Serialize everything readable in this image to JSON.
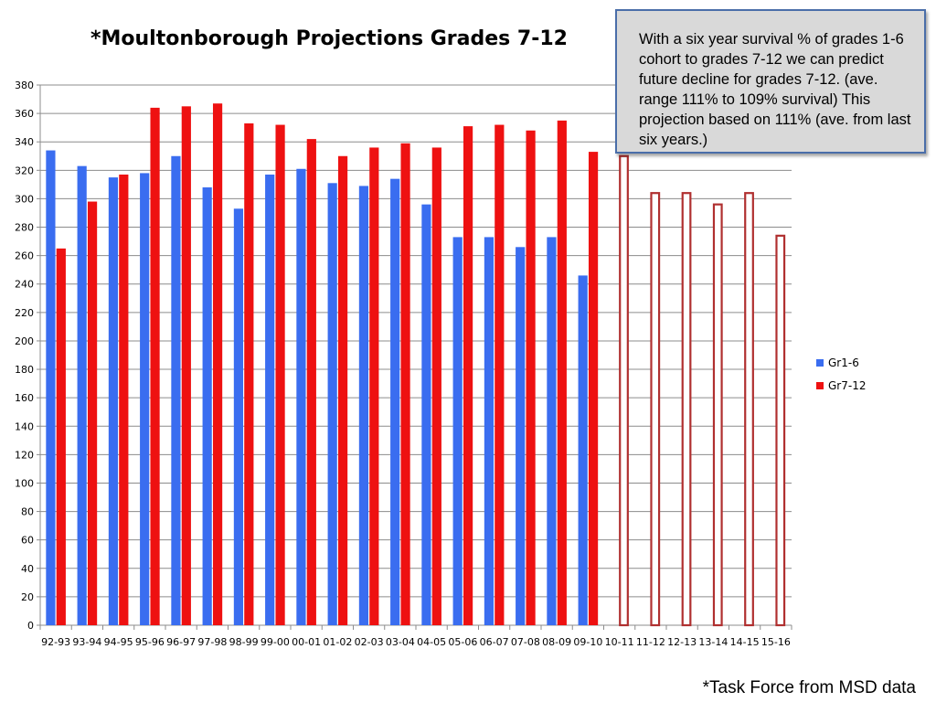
{
  "chart_data": {
    "type": "bar",
    "title": "*Moultonborough Projections Grades 7-12",
    "xlabel": "",
    "ylabel": "",
    "ylim": [
      0,
      380
    ],
    "ytick_step": 20,
    "grid": true,
    "legend_position": "right",
    "categories": [
      "92-93",
      "93-94",
      "94-95",
      "95-96",
      "96-97",
      "97-98",
      "98-99",
      "99-00",
      "00-01",
      "01-02",
      "02-03",
      "03-04",
      "04-05",
      "05-06",
      "06-07",
      "07-08",
      "08-09",
      "09-10",
      "10-11",
      "11-12",
      "12-13",
      "13-14",
      "14-15",
      "15-16"
    ],
    "series": [
      {
        "name": "Gr1-6",
        "color": "#3a6df0",
        "values": [
          334,
          323,
          315,
          318,
          330,
          308,
          293,
          317,
          321,
          311,
          309,
          314,
          296,
          273,
          273,
          266,
          273,
          246,
          null,
          null,
          null,
          null,
          null,
          null
        ]
      },
      {
        "name": "Gr7-12",
        "color": "#ee1111",
        "values": [
          265,
          298,
          317,
          364,
          365,
          367,
          353,
          352,
          342,
          330,
          336,
          339,
          336,
          351,
          352,
          348,
          355,
          333,
          null,
          null,
          null,
          null,
          null,
          null
        ]
      }
    ],
    "projected": {
      "color": "#b03030",
      "values": [
        null,
        null,
        null,
        null,
        null,
        null,
        null,
        null,
        null,
        null,
        null,
        null,
        null,
        null,
        null,
        null,
        null,
        null,
        330,
        304,
        304,
        296,
        304,
        274
      ]
    },
    "annotation": "With a six year survival % of grades 1-6 cohort to grades 7-12 we can predict future decline for grades 7-12. (ave. range 111% to 109% survival) This projection based on 111% (ave. from last six years.)"
  },
  "source_note": "*Task Force from MSD data"
}
